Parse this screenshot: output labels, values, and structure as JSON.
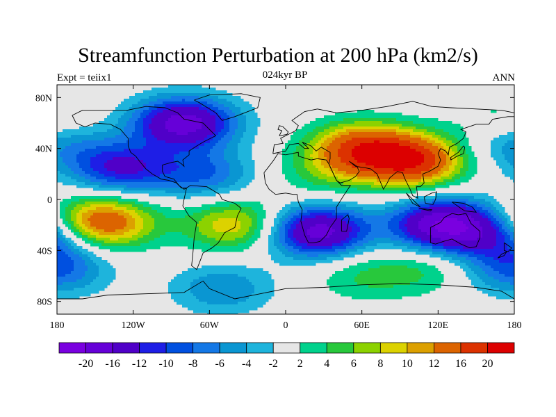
{
  "header": {
    "title": "Streamfunction Perturbation at 200 hPa (km2/s)",
    "left_label": "Expt = teiix1",
    "center_label": "024kyr BP",
    "right_label": "ANN"
  },
  "map": {
    "projection": "cylindrical equidistant",
    "lon_range": [
      -180,
      180
    ],
    "lat_range": [
      -90,
      90
    ],
    "lat_ticks": [
      "80N",
      "40N",
      "0",
      "40S",
      "80S"
    ],
    "lon_ticks": [
      "180",
      "120W",
      "60W",
      "0",
      "60E",
      "120E",
      "180"
    ],
    "land_outline_color": "#000000",
    "background_color": "#e6e6e6"
  },
  "colorbar": {
    "labels": [
      "-20",
      "-16",
      "-12",
      "-10",
      "-8",
      "-6",
      "-4",
      "-2",
      "2",
      "4",
      "6",
      "8",
      "10",
      "12",
      "16",
      "20"
    ],
    "colors": [
      "#7a00e0",
      "#6600d8",
      "#5000c8",
      "#1e1ee6",
      "#0050e0",
      "#1478e6",
      "#0a96d2",
      "#1eb4dc",
      "#e6e6e6",
      "#00d28c",
      "#28c83c",
      "#8cd200",
      "#dcd200",
      "#dca000",
      "#dc6400",
      "#dc3200",
      "#dc0000"
    ]
  },
  "chart_data": {
    "type": "heatmap",
    "title": "Streamfunction Perturbation at 200 hPa (km2/s)",
    "levels": [
      -20,
      -16,
      -12,
      -10,
      -8,
      -6,
      -4,
      -2,
      2,
      4,
      6,
      8,
      10,
      12,
      16,
      20
    ],
    "features": [
      {
        "lon": -80,
        "lat": 60,
        "value": -18
      },
      {
        "lon": -130,
        "lat": 25,
        "value": -12
      },
      {
        "lon": -180,
        "lat": 45,
        "value": -6
      },
      {
        "lon": -65,
        "lat": 20,
        "value": -8
      },
      {
        "lon": 60,
        "lat": 40,
        "value": 16
      },
      {
        "lon": 100,
        "lat": 30,
        "value": 18
      },
      {
        "lon": 30,
        "lat": 20,
        "value": 4
      },
      {
        "lon": -145,
        "lat": -18,
        "value": 16
      },
      {
        "lon": -40,
        "lat": -20,
        "value": 10
      },
      {
        "lon": 25,
        "lat": -25,
        "value": -18
      },
      {
        "lon": 125,
        "lat": -20,
        "value": -20
      },
      {
        "lon": 170,
        "lat": -30,
        "value": -8
      },
      {
        "lon": -180,
        "lat": -55,
        "value": -8
      },
      {
        "lon": -50,
        "lat": -70,
        "value": -6
      },
      {
        "lon": 60,
        "lat": -60,
        "value": 4
      },
      {
        "lon": 110,
        "lat": -55,
        "value": 4
      },
      {
        "lon": 170,
        "lat": 60,
        "value": 4
      }
    ]
  }
}
